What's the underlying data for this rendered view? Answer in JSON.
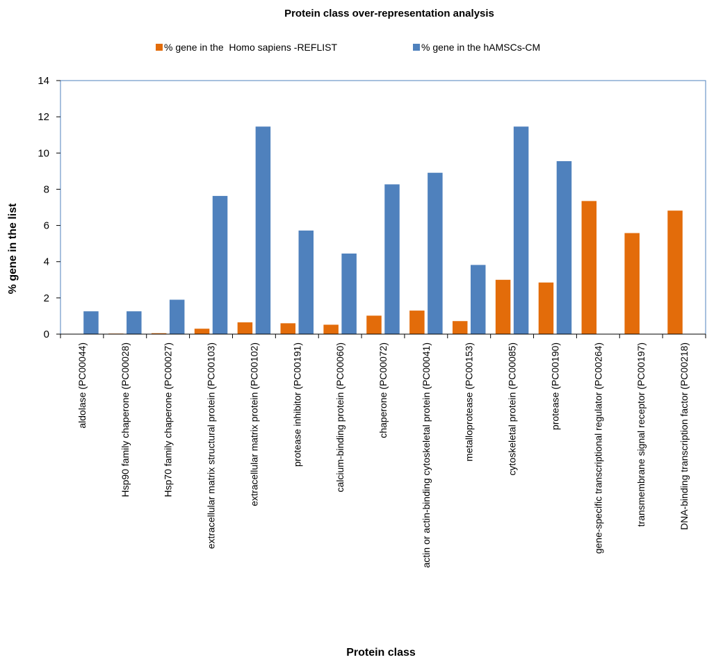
{
  "chart_data": {
    "type": "bar",
    "title": "Protein class over-representation analysis",
    "xlabel": "Protein class",
    "ylabel": "% gene in the list",
    "ylim": [
      0,
      14
    ],
    "yticks": [
      0,
      2,
      4,
      6,
      8,
      10,
      12,
      14
    ],
    "grid": false,
    "legend_position": "top-center",
    "categories": [
      "aldolase (PC00044)",
      "Hsp90 family chaperone (PC00028)",
      "Hsp70 family chaperone (PC00027)",
      "extracellular matrix structural protein (PC00103)",
      "extracellular matrix protein (PC00102)",
      "protease inhibitor (PC00191)",
      "calcium-binding protein (PC00060)",
      "chaperone (PC00072)",
      "actin or actin-binding cytoskeletal protein (PC00041)",
      "metalloprotease (PC00153)",
      "cytoskeletal protein (PC00085)",
      "protease (PC00190)",
      "gene-specific transcriptional regulator (PC00264)",
      "transmembrane signal receptor (PC00197)",
      "DNA-binding transcription factor (PC00218)"
    ],
    "series": [
      {
        "name": "% gene in the  Homo sapiens -REFLIST",
        "color": "#E36C0A",
        "values": [
          0,
          0.03,
          0.05,
          0.3,
          0.65,
          0.6,
          0.52,
          1.02,
          1.3,
          0.72,
          3.0,
          2.85,
          7.35,
          5.58,
          6.82
        ]
      },
      {
        "name": "% gene in the hAMSCs-CM",
        "color": "#4F81BD",
        "values": [
          1.26,
          1.26,
          1.9,
          7.63,
          11.46,
          5.72,
          4.45,
          8.27,
          8.91,
          3.82,
          11.46,
          9.55,
          0,
          0,
          0
        ]
      }
    ]
  }
}
